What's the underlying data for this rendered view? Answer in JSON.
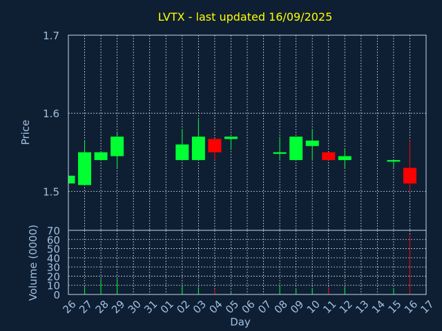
{
  "chart_data": {
    "title": "LVTX - last updated 16/09/2025",
    "colors": {
      "background": "#0f1f33",
      "title": "#ffff00",
      "axis_text": "#a0c0e0",
      "frame": "#c0d8f0",
      "grid": "#c8d8e8",
      "up": "#00ff33",
      "down": "#ff0000"
    },
    "price_panel": {
      "type": "candlestick",
      "ylabel": "Price",
      "ylim": [
        1.45,
        1.7
      ],
      "yticks": [
        "1.5",
        "1.6",
        "1.7"
      ],
      "ytick_values": [
        1.5,
        1.6,
        1.7
      ]
    },
    "volume_panel": {
      "type": "bar",
      "ylabel": "Volume (0000)",
      "ylim": [
        0,
        70
      ],
      "yticks": [
        "0",
        "10",
        "20",
        "30",
        "40",
        "50",
        "60",
        "70"
      ],
      "ytick_values": [
        0,
        10,
        20,
        30,
        40,
        50,
        60,
        70
      ]
    },
    "xlabel": "Day",
    "xticks": [
      "26",
      "27",
      "28",
      "29",
      "30",
      "31",
      "01",
      "02",
      "03",
      "04",
      "05",
      "06",
      "07",
      "08",
      "09",
      "10",
      "11",
      "12",
      "13",
      "14",
      "15",
      "16",
      "17"
    ],
    "vgrid_ticks": [
      "27",
      "28",
      "29",
      "30",
      "31",
      "01",
      "02",
      "03",
      "04",
      "05",
      "06",
      "07",
      "08",
      "09",
      "10",
      "11",
      "12",
      "13",
      "14",
      "15",
      "16"
    ],
    "candles": [
      {
        "day": "26",
        "open": 1.51,
        "high": 1.52,
        "low": 1.51,
        "close": 1.52,
        "volume": 2
      },
      {
        "day": "27",
        "open": 1.508,
        "high": 1.565,
        "low": 1.508,
        "close": 1.55,
        "volume": 8
      },
      {
        "day": "28",
        "open": 1.54,
        "high": 1.55,
        "low": 1.54,
        "close": 1.55,
        "volume": 17
      },
      {
        "day": "29",
        "open": 1.545,
        "high": 1.575,
        "low": 1.53,
        "close": 1.57,
        "volume": 17
      },
      {
        "day": "02",
        "open": 1.54,
        "high": 1.58,
        "low": 1.54,
        "close": 1.56,
        "volume": 9
      },
      {
        "day": "03",
        "open": 1.54,
        "high": 1.592,
        "low": 1.54,
        "close": 1.57,
        "volume": 8
      },
      {
        "day": "04",
        "open": 1.567,
        "high": 1.567,
        "low": 1.54,
        "close": 1.55,
        "volume": 6
      },
      {
        "day": "05",
        "open": 1.567,
        "high": 1.57,
        "low": 1.553,
        "close": 1.57,
        "volume": 2
      },
      {
        "day": "08",
        "open": 1.548,
        "high": 1.57,
        "low": 1.54,
        "close": 1.55,
        "volume": 10
      },
      {
        "day": "09",
        "open": 1.54,
        "high": 1.57,
        "low": 1.54,
        "close": 1.57,
        "volume": 6
      },
      {
        "day": "10",
        "open": 1.558,
        "high": 1.58,
        "low": 1.54,
        "close": 1.565,
        "volume": 7
      },
      {
        "day": "11",
        "open": 1.55,
        "high": 1.55,
        "low": 1.54,
        "close": 1.54,
        "volume": 8
      },
      {
        "day": "12",
        "open": 1.54,
        "high": 1.555,
        "low": 1.53,
        "close": 1.545,
        "volume": 8
      },
      {
        "day": "15",
        "open": 1.538,
        "high": 1.54,
        "low": 1.53,
        "close": 1.54,
        "volume": 7
      },
      {
        "day": "16",
        "open": 1.53,
        "high": 1.565,
        "low": 1.5,
        "close": 1.51,
        "volume": 65
      }
    ]
  }
}
